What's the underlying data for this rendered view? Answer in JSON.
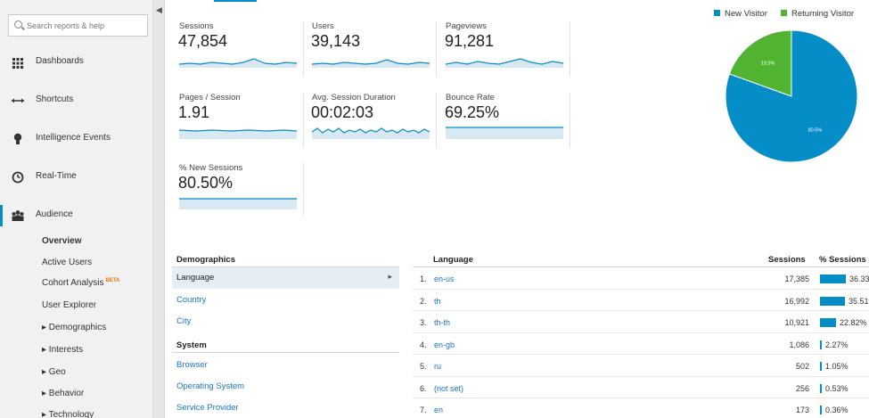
{
  "colors": {
    "accent": "#058dc7",
    "returning": "#50b432",
    "link": "#1a73c9"
  },
  "search": {
    "placeholder": "Search reports & help"
  },
  "sidebar": {
    "items": [
      {
        "label": "Dashboards",
        "icon": "grid-icon"
      },
      {
        "label": "Shortcuts",
        "icon": "arrows-icon"
      },
      {
        "label": "Intelligence Events",
        "icon": "bulb-icon"
      },
      {
        "label": "Real-Time",
        "icon": "clock-icon"
      },
      {
        "label": "Audience",
        "icon": "people-icon"
      }
    ],
    "audience_sub": [
      {
        "label": "Overview"
      },
      {
        "label": "Active Users"
      },
      {
        "label": "Cohort Analysis",
        "badge": "BETA"
      },
      {
        "label": "User Explorer"
      },
      {
        "label": "▸ Demographics"
      },
      {
        "label": "▸ Interests"
      },
      {
        "label": "▸ Geo"
      },
      {
        "label": "▸ Behavior"
      },
      {
        "label": "▸ Technology"
      }
    ]
  },
  "metrics": [
    {
      "label": "Sessions",
      "value": "47,854"
    },
    {
      "label": "Users",
      "value": "39,143"
    },
    {
      "label": "Pageviews",
      "value": "91,281"
    },
    {
      "label": "Pages / Session",
      "value": "1.91"
    },
    {
      "label": "Avg. Session Duration",
      "value": "00:02:03"
    },
    {
      "label": "Bounce Rate",
      "value": "69.25%"
    },
    {
      "label": "% New Sessions",
      "value": "80.50%"
    }
  ],
  "pie": {
    "legend": [
      {
        "label": "New Visitor",
        "color": "#058dc7"
      },
      {
        "label": "Returning Visitor",
        "color": "#50b432"
      }
    ],
    "slices": [
      {
        "label": "New Visitor",
        "value": 80.5,
        "text": "80.5%"
      },
      {
        "label": "Returning Visitor",
        "value": 19.5,
        "text": "19.5%"
      }
    ]
  },
  "left_table": {
    "demographics_head": "Demographics",
    "demographics": [
      {
        "label": "Language",
        "selected": true
      },
      {
        "label": "Country"
      },
      {
        "label": "City"
      }
    ],
    "system_head": "System",
    "system": [
      {
        "label": "Browser"
      },
      {
        "label": "Operating System"
      },
      {
        "label": "Service Provider"
      }
    ]
  },
  "lang_table": {
    "headers": {
      "language": "Language",
      "sessions": "Sessions",
      "pct": "% Sessions"
    },
    "rows": [
      {
        "n": "1.",
        "lang": "en-us",
        "sessions": "17,385",
        "pct": "36.33%",
        "frac": 0.3633
      },
      {
        "n": "2.",
        "lang": "th",
        "sessions": "16,992",
        "pct": "35.51%",
        "frac": 0.3551
      },
      {
        "n": "3.",
        "lang": "th-th",
        "sessions": "10,921",
        "pct": "22.82%",
        "frac": 0.2282
      },
      {
        "n": "4.",
        "lang": "en-gb",
        "sessions": "1,086",
        "pct": "2.27%",
        "frac": 0.0227
      },
      {
        "n": "5.",
        "lang": "ru",
        "sessions": "502",
        "pct": "1.05%",
        "frac": 0.0105
      },
      {
        "n": "6.",
        "lang": "(not set)",
        "sessions": "256",
        "pct": "0.53%",
        "frac": 0.0053
      },
      {
        "n": "7.",
        "lang": "en",
        "sessions": "173",
        "pct": "0.36%",
        "frac": 0.0036
      }
    ]
  }
}
